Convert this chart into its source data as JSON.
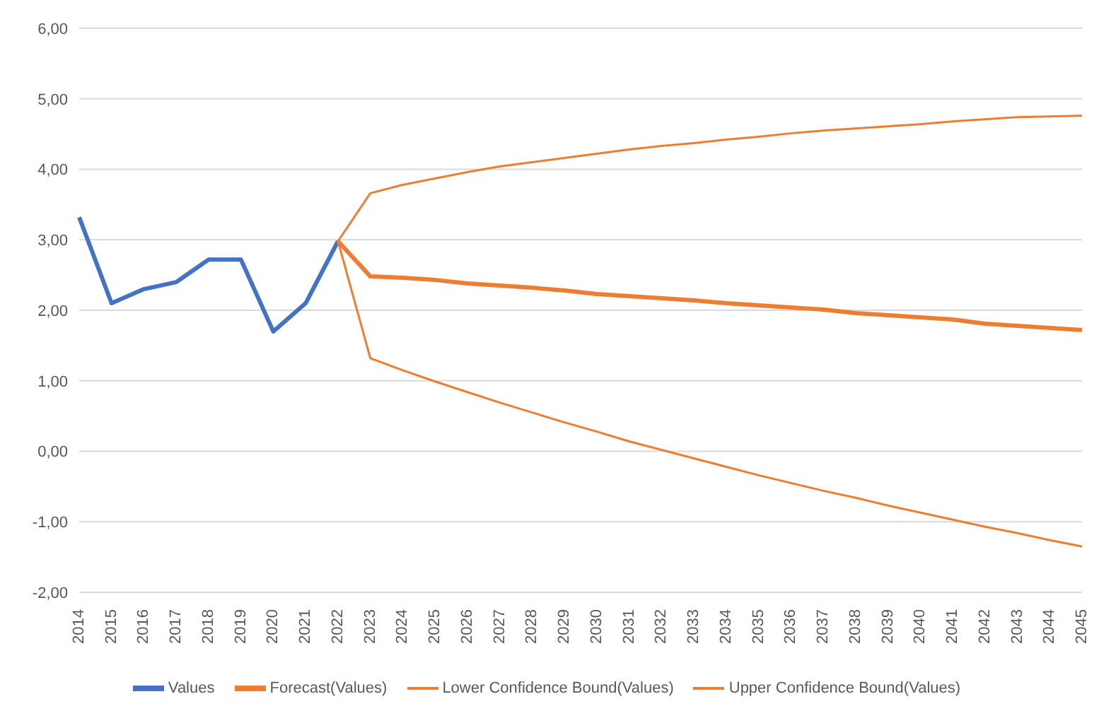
{
  "chart_data": {
    "type": "line",
    "categories": [
      "2014",
      "2015",
      "2016",
      "2017",
      "2018",
      "2019",
      "2020",
      "2021",
      "2022",
      "2023",
      "2024",
      "2025",
      "2026",
      "2027",
      "2028",
      "2029",
      "2030",
      "2031",
      "2032",
      "2033",
      "2034",
      "2035",
      "2036",
      "2037",
      "2038",
      "2039",
      "2040",
      "2041",
      "2042",
      "2043",
      "2044",
      "2045"
    ],
    "series": [
      {
        "name": "Values",
        "color": "#4472c4",
        "values": [
          3.32,
          2.1,
          2.3,
          2.4,
          2.72,
          2.72,
          1.7,
          2.1,
          2.98,
          null,
          null,
          null,
          null,
          null,
          null,
          null,
          null,
          null,
          null,
          null,
          null,
          null,
          null,
          null,
          null,
          null,
          null,
          null,
          null,
          null,
          null,
          null
        ]
      },
      {
        "name": "Forecast(Values)",
        "color": "#ed7d31",
        "values": [
          null,
          null,
          null,
          null,
          null,
          null,
          null,
          null,
          2.98,
          2.48,
          2.46,
          2.43,
          2.38,
          2.35,
          2.32,
          2.28,
          2.23,
          2.2,
          2.17,
          2.14,
          2.1,
          2.07,
          2.04,
          2.01,
          1.96,
          1.93,
          1.9,
          1.87,
          1.81,
          1.78,
          1.75,
          1.72
        ]
      },
      {
        "name": "Lower Confidence Bound(Values)",
        "color": "#ed7d31",
        "values": [
          null,
          null,
          null,
          null,
          null,
          null,
          null,
          null,
          2.98,
          1.32,
          1.15,
          0.99,
          0.84,
          0.69,
          0.55,
          0.41,
          0.28,
          0.14,
          0.02,
          -0.1,
          -0.22,
          -0.34,
          -0.45,
          -0.56,
          -0.66,
          -0.77,
          -0.87,
          -0.97,
          -1.07,
          -1.16,
          -1.26,
          -1.35
        ]
      },
      {
        "name": "Upper Confidence Bound(Values)",
        "color": "#ed7d31",
        "values": [
          null,
          null,
          null,
          null,
          null,
          null,
          null,
          null,
          2.98,
          3.66,
          3.78,
          3.87,
          3.96,
          4.04,
          4.1,
          4.16,
          4.22,
          4.28,
          4.33,
          4.37,
          4.42,
          4.46,
          4.51,
          4.55,
          4.58,
          4.61,
          4.64,
          4.68,
          4.71,
          4.74,
          4.75,
          4.76
        ]
      }
    ],
    "ylim": [
      -2,
      6
    ],
    "yticks": [
      {
        "value": -2,
        "label": "-2,00"
      },
      {
        "value": -1,
        "label": "-1,00"
      },
      {
        "value": 0,
        "label": "0,00"
      },
      {
        "value": 1,
        "label": "1,00"
      },
      {
        "value": 2,
        "label": "2,00"
      },
      {
        "value": 3,
        "label": "3,00"
      },
      {
        "value": 4,
        "label": "4,00"
      },
      {
        "value": 5,
        "label": "5,00"
      },
      {
        "value": 6,
        "label": "6,00"
      }
    ],
    "grid": "y",
    "legend": "bottom",
    "marker": "none",
    "line_style": "solid"
  }
}
